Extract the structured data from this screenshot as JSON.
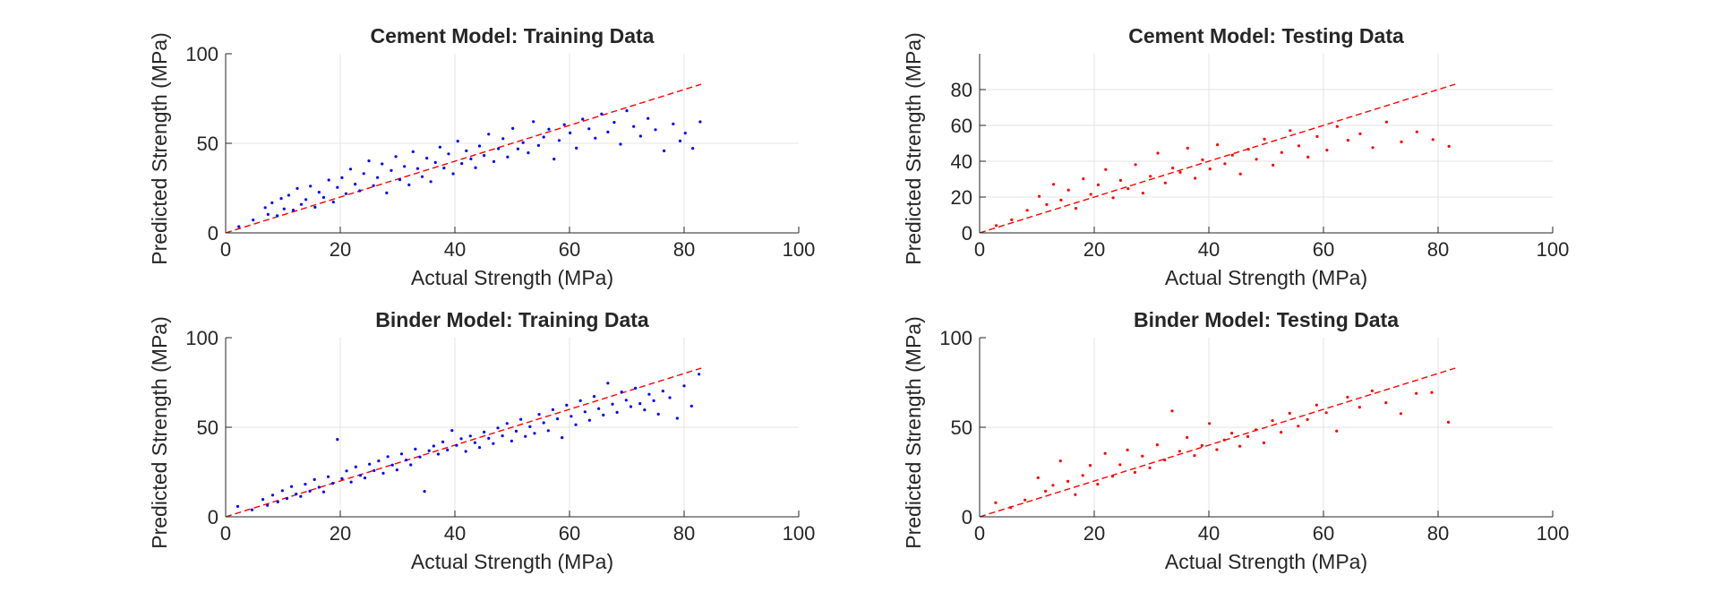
{
  "chart_data": [
    {
      "type": "scatter",
      "title": "Cement Model: Training Data",
      "xlabel": "Actual Strength (MPa)",
      "ylabel": "Predicted Strength (MPa)",
      "xlim": [
        0,
        100
      ],
      "ylim": [
        0,
        100
      ],
      "xticks": [
        "0",
        "20",
        "40",
        "60",
        "80",
        "100"
      ],
      "yticks": [
        "0",
        "50",
        "100"
      ],
      "grid": true,
      "point_color": "#0000ff",
      "reference_line": {
        "x": [
          0,
          83
        ],
        "y": [
          0,
          83
        ],
        "color": "#ff0000",
        "style": "dashed"
      },
      "series": [
        {
          "x": [
            2.3,
            4.8,
            6.9,
            7.4,
            8.1,
            9.0,
            9.7,
            10.2,
            11.0,
            11.8,
            12.5,
            13.2,
            14.0,
            14.8,
            15.6,
            16.3,
            17.1,
            18.0,
            18.8,
            19.5,
            20.3,
            21.0,
            21.8,
            22.6,
            23.4,
            24.1,
            25.0,
            25.8,
            26.5,
            27.3,
            28.1,
            28.9,
            29.7,
            30.4,
            31.2,
            32.0,
            32.7,
            33.5,
            34.3,
            35.1,
            35.8,
            36.6,
            37.4,
            38.1,
            38.9,
            39.7,
            40.5,
            41.2,
            42.0,
            42.8,
            43.6,
            44.3,
            45.1,
            45.9,
            46.8,
            47.6,
            48.4,
            49.2,
            50.1,
            51.0,
            51.9,
            52.8,
            53.7,
            54.6,
            55.5,
            56.4,
            57.3,
            58.2,
            59.1,
            60.1,
            61.2,
            62.3,
            63.4,
            64.5,
            65.6,
            66.7,
            67.8,
            68.9,
            70.0,
            71.2,
            72.4,
            73.7,
            75.0,
            76.5,
            78.1,
            79.3,
            80.2,
            81.5,
            82.8
          ],
          "y": [
            3.5,
            7.2,
            14.1,
            10.3,
            16.8,
            9.6,
            19.2,
            13.4,
            21.0,
            12.7,
            24.8,
            15.9,
            18.6,
            26.1,
            14.3,
            22.7,
            19.8,
            29.5,
            17.2,
            25.4,
            30.8,
            21.9,
            35.6,
            27.2,
            23.5,
            33.1,
            40.2,
            26.4,
            30.9,
            38.5,
            22.3,
            34.8,
            42.6,
            29.7,
            37.1,
            26.8,
            45.3,
            35.9,
            31.4,
            41.7,
            28.6,
            39.3,
            47.9,
            36.2,
            44.1,
            33.0,
            51.2,
            38.7,
            45.8,
            41.3,
            36.4,
            48.5,
            43.2,
            55.1,
            39.8,
            47.0,
            52.6,
            42.4,
            58.3,
            46.9,
            50.4,
            44.7,
            62.1,
            48.8,
            53.5,
            57.9,
            41.2,
            51.6,
            60.4,
            55.8,
            47.3,
            63.5,
            58.1,
            52.9,
            66.4,
            56.3,
            61.7,
            49.5,
            68.2,
            59.4,
            54.0,
            63.9,
            57.6,
            45.8,
            60.8,
            51.3,
            55.7,
            47.2,
            62.0
          ]
        }
      ]
    },
    {
      "type": "scatter",
      "title": "Cement Model: Testing Data",
      "xlabel": "Actual Strength (MPa)",
      "ylabel": "Predicted Strength (MPa)",
      "xlim": [
        0,
        100
      ],
      "ylim": [
        0,
        100
      ],
      "xticks": [
        "0",
        "20",
        "40",
        "60",
        "80",
        "100"
      ],
      "yticks": [
        "0",
        "20",
        "40",
        "60",
        "80"
      ],
      "grid": true,
      "point_color": "#ff0000",
      "reference_line": {
        "x": [
          0,
          83
        ],
        "y": [
          0,
          83
        ],
        "color": "#ff0000",
        "style": "dashed"
      },
      "series": [
        {
          "x": [
            2.9,
            5.6,
            8.3,
            10.4,
            11.7,
            12.9,
            14.2,
            15.5,
            16.8,
            18.1,
            19.4,
            20.7,
            22.0,
            23.3,
            24.6,
            25.9,
            27.2,
            28.5,
            29.8,
            31.1,
            32.4,
            33.7,
            35.0,
            36.3,
            37.6,
            38.9,
            40.2,
            41.5,
            42.8,
            44.1,
            45.5,
            46.9,
            48.3,
            49.7,
            51.2,
            52.7,
            54.2,
            55.7,
            57.3,
            58.9,
            60.6,
            62.4,
            64.3,
            66.4,
            68.6,
            71.0,
            73.6,
            76.3,
            79.1,
            81.9
          ],
          "y": [
            4.1,
            7.3,
            12.6,
            20.4,
            15.8,
            27.1,
            18.3,
            23.9,
            13.7,
            30.2,
            21.5,
            26.8,
            35.4,
            19.6,
            29.3,
            24.7,
            38.1,
            22.2,
            31.6,
            44.5,
            27.9,
            36.2,
            33.8,
            47.3,
            30.5,
            40.8,
            35.7,
            49.2,
            38.6,
            43.4,
            32.9,
            46.7,
            41.1,
            52.3,
            37.8,
            44.9,
            57.1,
            48.6,
            42.3,
            53.8,
            46.2,
            59.4,
            51.7,
            55.3,
            47.6,
            61.9,
            50.8,
            56.4,
            52.1,
            48.3
          ]
        }
      ]
    },
    {
      "type": "scatter",
      "title": "Binder Model: Training Data",
      "xlabel": "Actual Strength (MPa)",
      "ylabel": "Predicted Strength (MPa)",
      "xlim": [
        0,
        100
      ],
      "ylim": [
        0,
        100
      ],
      "xticks": [
        "0",
        "20",
        "40",
        "60",
        "80",
        "100"
      ],
      "yticks": [
        "0",
        "50",
        "100"
      ],
      "grid": true,
      "point_color": "#0000ff",
      "reference_line": {
        "x": [
          0,
          83
        ],
        "y": [
          0,
          83
        ],
        "color": "#ff0000",
        "style": "dashed"
      },
      "series": [
        {
          "x": [
            2.1,
            4.6,
            6.5,
            7.3,
            8.2,
            9.1,
            9.9,
            10.7,
            11.5,
            12.3,
            13.1,
            13.9,
            14.7,
            15.5,
            16.3,
            17.1,
            17.9,
            18.7,
            19.5,
            20.3,
            21.1,
            21.9,
            22.7,
            23.5,
            24.3,
            25.1,
            25.9,
            26.7,
            27.5,
            28.3,
            29.1,
            29.9,
            30.7,
            31.5,
            32.3,
            33.1,
            33.9,
            34.7,
            35.5,
            36.3,
            37.1,
            37.9,
            38.7,
            39.5,
            40.3,
            41.1,
            41.9,
            42.7,
            43.5,
            44.3,
            45.1,
            45.9,
            46.7,
            47.5,
            48.3,
            49.1,
            49.9,
            50.7,
            51.5,
            52.3,
            53.1,
            53.9,
            54.7,
            55.5,
            56.3,
            57.1,
            57.9,
            58.7,
            59.5,
            60.3,
            61.1,
            61.9,
            62.7,
            63.5,
            64.3,
            65.1,
            65.9,
            66.7,
            67.5,
            68.3,
            69.1,
            69.9,
            70.7,
            71.5,
            72.3,
            73.1,
            73.9,
            74.7,
            75.5,
            76.3,
            77.5,
            78.8,
            80.0,
            81.3,
            82.6
          ],
          "y": [
            5.8,
            3.9,
            9.7,
            6.4,
            12.1,
            8.3,
            14.6,
            10.2,
            16.9,
            12.7,
            11.4,
            18.2,
            14.3,
            20.8,
            16.5,
            13.9,
            22.4,
            18.7,
            43.2,
            21.3,
            25.6,
            19.4,
            27.9,
            23.1,
            21.7,
            29.4,
            25.8,
            31.2,
            24.3,
            33.6,
            28.9,
            26.2,
            35.1,
            31.7,
            29.0,
            37.8,
            33.4,
            14.2,
            36.9,
            39.5,
            35.0,
            41.8,
            37.3,
            48.2,
            39.9,
            43.6,
            36.5,
            45.1,
            41.4,
            38.7,
            47.3,
            43.8,
            40.9,
            49.6,
            45.2,
            52.1,
            42.3,
            47.8,
            54.4,
            44.9,
            50.3,
            46.6,
            57.2,
            52.5,
            48.1,
            59.8,
            54.7,
            44.2,
            62.3,
            56.1,
            51.4,
            64.8,
            58.6,
            53.9,
            67.2,
            60.4,
            56.8,
            74.6,
            62.9,
            58.3,
            69.7,
            65.1,
            61.5,
            71.8,
            63.2,
            59.7,
            68.4,
            64.8,
            57.3,
            70.2,
            66.5,
            55.0,
            73.1,
            61.8,
            79.6
          ]
        }
      ]
    },
    {
      "type": "scatter",
      "title": "Binder Model: Testing Data",
      "xlabel": "Actual Strength (MPa)",
      "ylabel": "Predicted Strength (MPa)",
      "xlim": [
        0,
        100
      ],
      "ylim": [
        0,
        100
      ],
      "xticks": [
        "0",
        "20",
        "40",
        "60",
        "80",
        "100"
      ],
      "yticks": [
        "0",
        "50",
        "100"
      ],
      "grid": true,
      "point_color": "#ff0000",
      "reference_line": {
        "x": [
          0,
          83
        ],
        "y": [
          0,
          83
        ],
        "color": "#ff0000",
        "style": "dashed"
      },
      "series": [
        {
          "x": [
            2.8,
            5.4,
            7.9,
            10.2,
            11.5,
            12.8,
            14.1,
            15.4,
            16.7,
            18.0,
            19.3,
            20.6,
            21.9,
            23.2,
            24.5,
            25.8,
            27.1,
            28.4,
            29.7,
            31.0,
            32.3,
            33.6,
            34.9,
            36.2,
            37.5,
            38.8,
            40.1,
            41.4,
            42.7,
            44.0,
            45.4,
            46.8,
            48.2,
            49.6,
            51.1,
            52.6,
            54.1,
            55.6,
            57.2,
            58.8,
            60.5,
            62.3,
            64.2,
            66.3,
            68.5,
            70.9,
            73.5,
            76.2,
            78.9,
            81.8
          ],
          "y": [
            7.9,
            5.2,
            9.4,
            21.8,
            14.3,
            17.6,
            31.2,
            19.8,
            12.4,
            23.1,
            28.7,
            18.2,
            35.4,
            22.6,
            29.1,
            37.3,
            24.8,
            33.9,
            27.3,
            40.2,
            31.7,
            59.1,
            36.6,
            44.3,
            34.2,
            39.8,
            52.1,
            37.5,
            42.9,
            46.7,
            39.4,
            44.8,
            48.6,
            41.3,
            53.7,
            47.2,
            57.8,
            50.6,
            54.3,
            62.4,
            58.1,
            47.9,
            66.8,
            61.2,
            70.3,
            63.7,
            57.6,
            68.9,
            69.4,
            52.8
          ]
        }
      ]
    }
  ]
}
